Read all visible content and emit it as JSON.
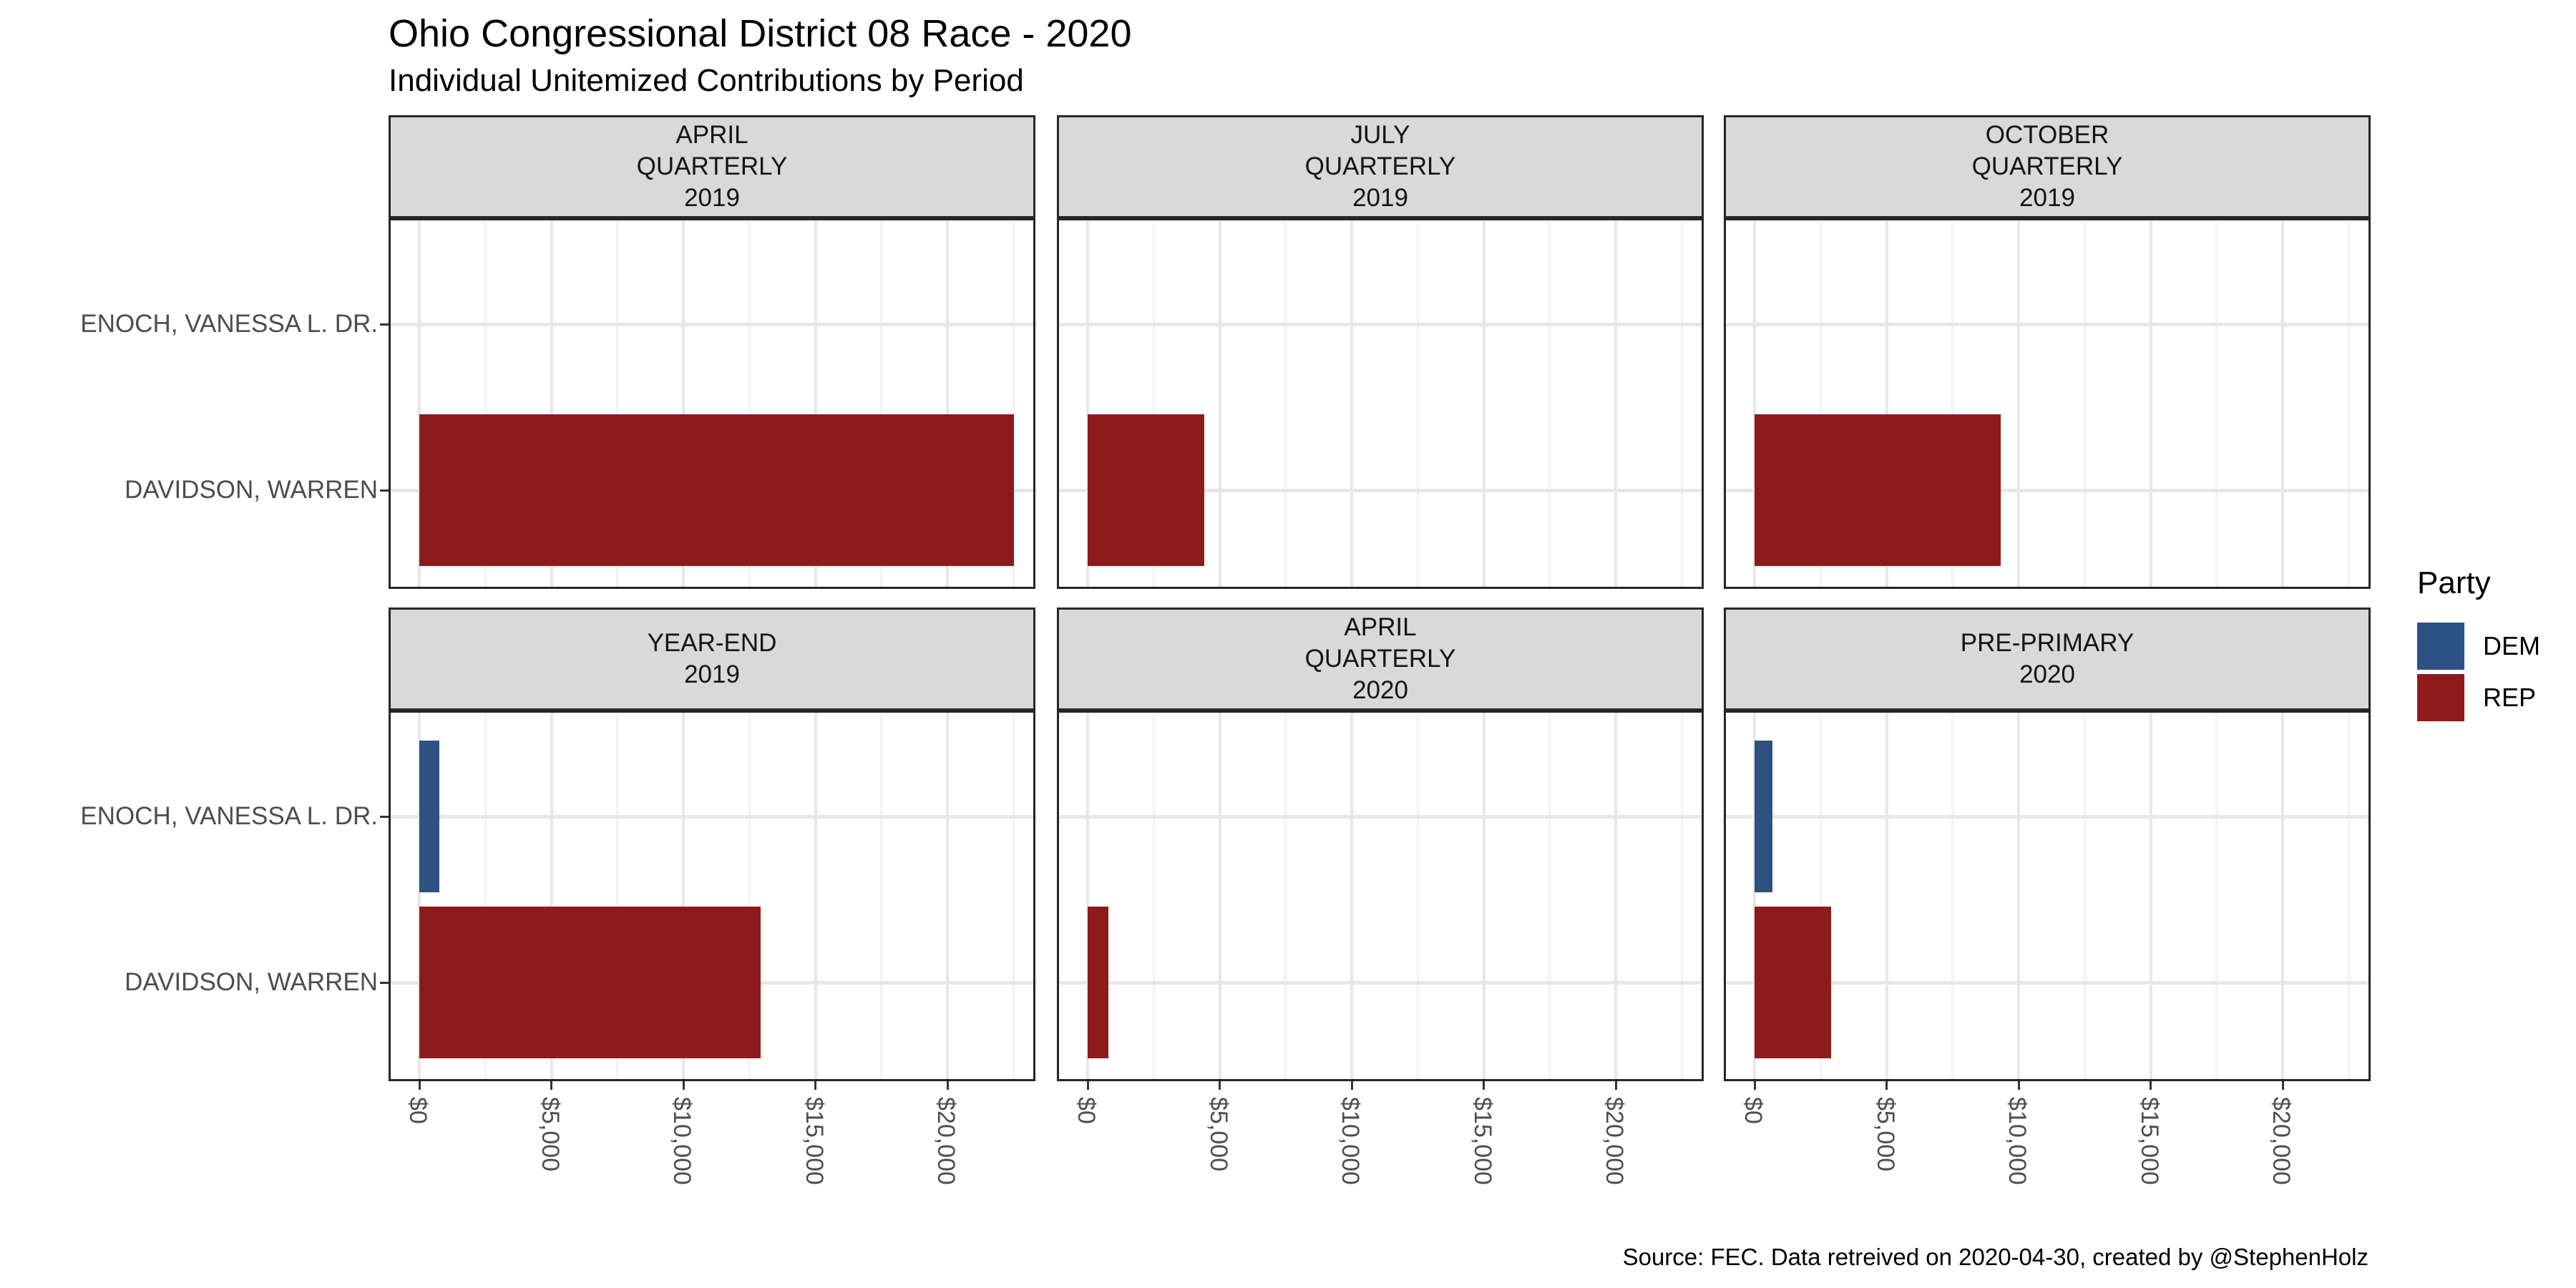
{
  "title": "Ohio Congressional District 08 Race - 2020",
  "subtitle": "Individual Unitemized Contributions by Period",
  "caption": "Source: FEC. Data retreived on 2020-04-30, created by @StephenHolz",
  "legend": {
    "title": "Party",
    "items": [
      {
        "label": "DEM",
        "color": "#2D5182"
      },
      {
        "label": "REP",
        "color": "#8E1B1B"
      }
    ]
  },
  "y_axis": {
    "categories": [
      "ENOCH, VANESSA L. DR.",
      "DAVIDSON, WARREN"
    ]
  },
  "x_axis": {
    "tick_labels": [
      "$0",
      "$5,000",
      "$10,000",
      "$15,000",
      "$20,000"
    ],
    "tick_values": [
      0,
      5000,
      10000,
      15000,
      20000
    ],
    "minor_tick_values": [
      2500,
      7500,
      12500,
      17500,
      22500
    ]
  },
  "facets": [
    {
      "label_lines": [
        "APRIL",
        "QUARTERLY",
        "2019"
      ]
    },
    {
      "label_lines": [
        "JULY",
        "QUARTERLY",
        "2019"
      ]
    },
    {
      "label_lines": [
        "OCTOBER",
        "QUARTERLY",
        "2019"
      ]
    },
    {
      "label_lines": [
        "YEAR-END",
        "2019"
      ]
    },
    {
      "label_lines": [
        "APRIL",
        "QUARTERLY",
        "2020"
      ]
    },
    {
      "label_lines": [
        "PRE-PRIMARY",
        "2020"
      ]
    }
  ],
  "chart_data": {
    "type": "bar",
    "orientation": "horizontal",
    "title": "Ohio Congressional District 08 Race - 2020",
    "subtitle": "Individual Unitemized Contributions by Period",
    "legend_title": "Party",
    "legend_position": "right",
    "grid": true,
    "facets": [
      "APRIL QUARTERLY 2019",
      "JULY QUARTERLY 2019",
      "OCTOBER QUARTERLY 2019",
      "YEAR-END 2019",
      "APRIL QUARTERLY 2020",
      "PRE-PRIMARY 2020"
    ],
    "y_categories": [
      "ENOCH, VANESSA L. DR.",
      "DAVIDSON, WARREN"
    ],
    "series": [
      {
        "name": "ENOCH, VANESSA L. DR.",
        "party": "DEM",
        "values": [
          0,
          0,
          0,
          750,
          0,
          680
        ]
      },
      {
        "name": "DAVIDSON, WARREN",
        "party": "REP",
        "values": [
          22520,
          4430,
          9330,
          12930,
          790,
          2900
        ]
      }
    ],
    "x_ticks": [
      0,
      5000,
      10000,
      15000,
      20000
    ],
    "x_tick_labels": [
      "$0",
      "$5,000",
      "$10,000",
      "$15,000",
      "$20,000"
    ],
    "xlim": [
      0,
      22600
    ]
  }
}
